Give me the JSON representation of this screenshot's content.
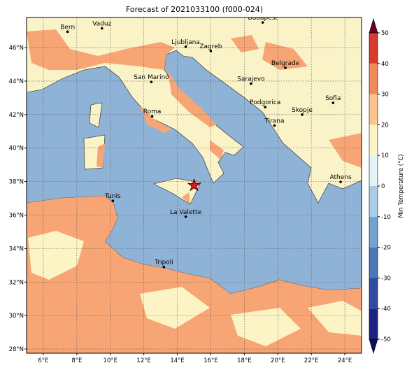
{
  "map": {
    "title": "Forecast of 2021033100 (f000-024)",
    "lonlim": [
      5.0,
      25.0
    ],
    "latlim": [
      27.75,
      47.8
    ],
    "xticks": [
      {
        "value": 6,
        "label": "6°E"
      },
      {
        "value": 8,
        "label": "8°E"
      },
      {
        "value": 10,
        "label": "10°E"
      },
      {
        "value": 12,
        "label": "12°E"
      },
      {
        "value": 14,
        "label": "14°E"
      },
      {
        "value": 16,
        "label": "16°E"
      },
      {
        "value": 18,
        "label": "18°E"
      },
      {
        "value": 20,
        "label": "20°E"
      },
      {
        "value": 22,
        "label": "22°E"
      },
      {
        "value": 24,
        "label": "24°E"
      }
    ],
    "yticks": [
      {
        "value": 28,
        "label": "28°N"
      },
      {
        "value": 30,
        "label": "30°N"
      },
      {
        "value": 32,
        "label": "32°N"
      },
      {
        "value": 34,
        "label": "34°N"
      },
      {
        "value": 36,
        "label": "36°N"
      },
      {
        "value": 38,
        "label": "38°N"
      },
      {
        "value": 40,
        "label": "40°N"
      },
      {
        "value": 42,
        "label": "42°N"
      },
      {
        "value": 44,
        "label": "44°N"
      },
      {
        "value": 46,
        "label": "46°N"
      }
    ],
    "grid": true,
    "cities": [
      {
        "name": "Bern",
        "lon": 7.45,
        "lat": 46.95
      },
      {
        "name": "Vaduz",
        "lon": 9.5,
        "lat": 47.15
      },
      {
        "name": "Budapest",
        "lon": 19.1,
        "lat": 47.5
      },
      {
        "name": "Ljubljana",
        "lon": 14.5,
        "lat": 46.05
      },
      {
        "name": "Zagreb",
        "lon": 16.0,
        "lat": 45.8
      },
      {
        "name": "Belgrade",
        "lon": 20.45,
        "lat": 44.8
      },
      {
        "name": "Sarajevo",
        "lon": 18.4,
        "lat": 43.85
      },
      {
        "name": "San Marino",
        "lon": 12.45,
        "lat": 43.95
      },
      {
        "name": "Sofia",
        "lon": 23.3,
        "lat": 42.7
      },
      {
        "name": "Podgorica",
        "lon": 19.25,
        "lat": 42.45
      },
      {
        "name": "Skopje",
        "lon": 21.45,
        "lat": 42.0
      },
      {
        "name": "Roma",
        "lon": 12.5,
        "lat": 41.9
      },
      {
        "name": "Tirana",
        "lon": 19.8,
        "lat": 41.35
      },
      {
        "name": "Athens",
        "lon": 23.75,
        "lat": 37.98
      },
      {
        "name": "Tunis",
        "lon": 10.15,
        "lat": 36.85
      },
      {
        "name": "La Valette",
        "lon": 14.5,
        "lat": 35.9
      },
      {
        "name": "Tripoli",
        "lon": 13.2,
        "lat": 32.9
      }
    ],
    "marker": {
      "lon": 15.0,
      "lat": 37.77,
      "color": "#e8141c"
    },
    "colorbar": {
      "label": "Min Temperature (°C)",
      "ticks": [
        -50,
        -40,
        -30,
        -20,
        -10,
        0,
        10,
        20,
        30,
        40,
        50
      ],
      "colors": [
        "#1c2383",
        "#2f4aa0",
        "#4b78b6",
        "#73a3cf",
        "#a8cde4",
        "#e2f4f8",
        "#fcf4c4",
        "#fbc48f",
        "#f08a5a",
        "#d83a2c",
        "#a60f26"
      ],
      "under": "#0d105c",
      "over": "#6b0020"
    }
  }
}
